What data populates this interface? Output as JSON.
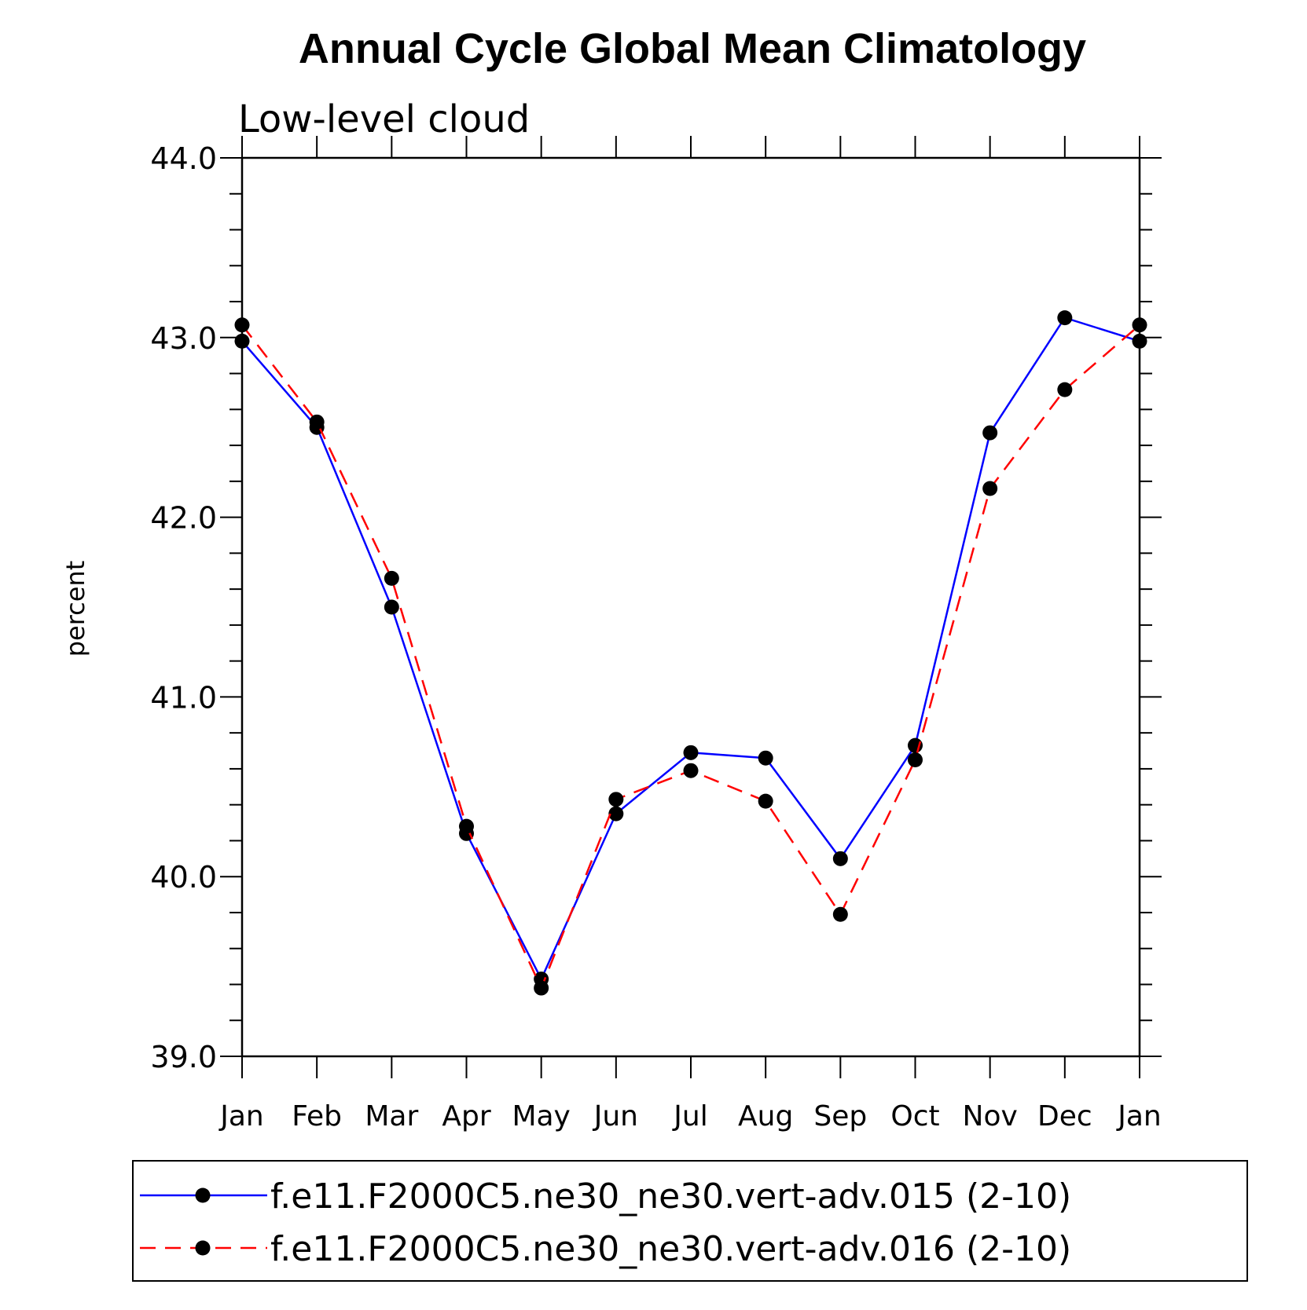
{
  "chart_data": {
    "type": "line",
    "title": "Annual Cycle Global Mean Climatology",
    "subtitle": "Low-level cloud",
    "xlabel": "",
    "ylabel": "percent",
    "categories": [
      "Jan",
      "Feb",
      "Mar",
      "Apr",
      "May",
      "Jun",
      "Jul",
      "Aug",
      "Sep",
      "Oct",
      "Nov",
      "Dec",
      "Jan"
    ],
    "ylim": [
      39.0,
      44.0
    ],
    "yticks": [
      "39.0",
      "40.0",
      "41.0",
      "42.0",
      "43.0",
      "44.0"
    ],
    "grid": false,
    "legend_position": "bottom",
    "series": [
      {
        "name": "f.e11.F2000C5.ne30_ne30.vert-adv.015 (2-10)",
        "color": "#0000ff",
        "style": "solid",
        "marker": "filled-circle",
        "values": [
          42.98,
          42.5,
          41.5,
          40.24,
          39.43,
          40.35,
          40.69,
          40.66,
          40.1,
          40.73,
          42.47,
          43.11,
          42.98
        ]
      },
      {
        "name": "f.e11.F2000C5.ne30_ne30.vert-adv.016 (2-10)",
        "color": "#ff0000",
        "style": "dashed",
        "marker": "filled-circle",
        "values": [
          43.07,
          42.53,
          41.66,
          40.28,
          39.38,
          40.43,
          40.59,
          40.42,
          39.79,
          40.65,
          42.16,
          42.71,
          43.07
        ]
      }
    ]
  }
}
